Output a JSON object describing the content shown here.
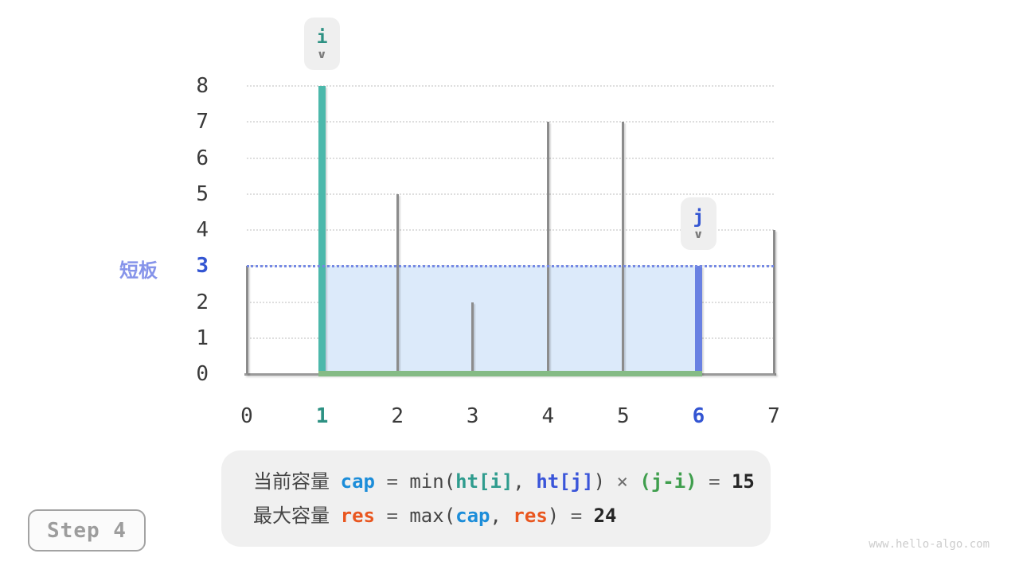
{
  "chart_data": {
    "type": "bar",
    "x": [
      0,
      1,
      2,
      3,
      4,
      5,
      6,
      7
    ],
    "heights": [
      3,
      8,
      5,
      2,
      7,
      7,
      3,
      4
    ],
    "xlabel": "",
    "ylabel": "",
    "ylim": [
      0,
      8
    ],
    "yticks": [
      0,
      1,
      2,
      3,
      4,
      5,
      6,
      7,
      8
    ],
    "grid": "dotted-horizontal",
    "pointer_i": {
      "label": "i",
      "index": 1
    },
    "pointer_j": {
      "label": "j",
      "index": 6
    },
    "water": {
      "from": 1,
      "to": 6,
      "level": 3
    },
    "short_board": {
      "label": "短板",
      "value": 3
    }
  },
  "formulas": {
    "line1": [
      {
        "t": "当前容量 ",
        "c": "zh"
      },
      {
        "t": "cap",
        "c": "cap"
      },
      {
        "t": " = ",
        "c": "op"
      },
      {
        "t": "min(",
        "c": "fn"
      },
      {
        "t": "ht[i]",
        "c": "hti"
      },
      {
        "t": ", ",
        "c": "fn"
      },
      {
        "t": "ht[j]",
        "c": "htj"
      },
      {
        "t": ") ",
        "c": "fn"
      },
      {
        "t": "× ",
        "c": "op"
      },
      {
        "t": "(j-i)",
        "c": "jmi"
      },
      {
        "t": " = ",
        "c": "op"
      },
      {
        "t": "15",
        "c": "num"
      }
    ],
    "line2": [
      {
        "t": "最大容量 ",
        "c": "zh"
      },
      {
        "t": "res",
        "c": "res"
      },
      {
        "t": " = ",
        "c": "op"
      },
      {
        "t": "max(",
        "c": "fn"
      },
      {
        "t": "cap",
        "c": "cap"
      },
      {
        "t": ", ",
        "c": "fn"
      },
      {
        "t": "res",
        "c": "res"
      },
      {
        "t": ") ",
        "c": "fn"
      },
      {
        "t": "= ",
        "c": "op"
      },
      {
        "t": "24",
        "c": "num"
      }
    ]
  },
  "step_label": "Step 4",
  "watermark": "www.hello-algo.com",
  "icons": {
    "down_arrow": "∨"
  },
  "colors": {
    "teal_bar": "#4cb8ab",
    "teal_text": "#2d9183",
    "blue_bar": "#6981e2",
    "blue_text": "#3355d2",
    "cap_blue": "#1c8dd9",
    "res_orange": "#e9561f",
    "expr_green": "#3f9e4d",
    "hti_teal": "#2f9c8e",
    "htj_blue": "#3a55d9",
    "water_fill": "#dceafa",
    "water_line": "#7589e4",
    "green_base": "#85bb85",
    "bar_gray": "#8c8c8c",
    "axis_gray": "#9a9a9a",
    "grid_gray": "#dedede",
    "short_board_text": "#8694ea",
    "badge_bg": "#efefef",
    "box_bg": "#f0f0f0",
    "step_gray": "#9d9d9d",
    "watermark_gray": "#cccccc"
  }
}
